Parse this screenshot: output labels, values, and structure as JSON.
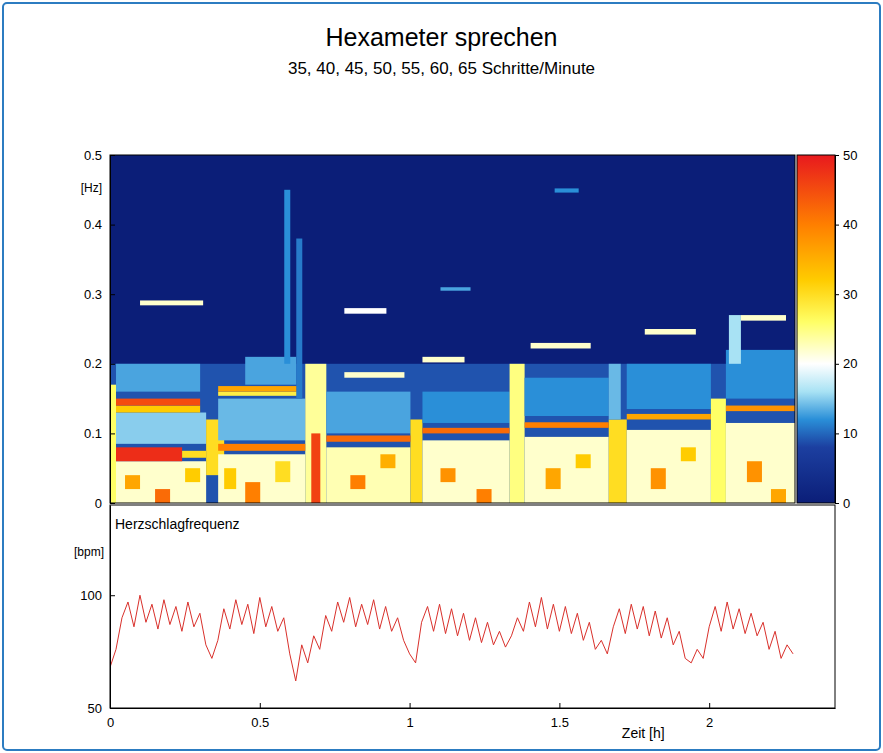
{
  "chart_data": [
    {
      "type": "heatmap",
      "title": "Hexameter sprechen",
      "subtitle": "35, 40, 45, 50, 55, 60, 65 Schritte/Minute",
      "ylabel": "[Hz]",
      "xlim": [
        0,
        2.28
      ],
      "ylim": [
        0,
        0.5
      ],
      "yticks": [
        0,
        0.1,
        0.2,
        0.3,
        0.4,
        0.5
      ],
      "tick_labels": "y",
      "colorbar": {
        "range": [
          0,
          50
        ],
        "ticks": [
          0,
          10,
          20,
          30,
          40,
          50
        ]
      },
      "cells": [
        [
          0,
          2.28,
          0,
          0.2,
          9
        ],
        [
          0,
          0.02,
          0,
          0.17,
          26
        ],
        [
          0.02,
          0.32,
          0,
          0.06,
          22
        ],
        [
          0.02,
          0.32,
          0.085,
          0.13,
          15
        ],
        [
          0.05,
          0.1,
          0.02,
          0.04,
          36
        ],
        [
          0.15,
          0.2,
          0,
          0.02,
          42
        ],
        [
          0.25,
          0.3,
          0.03,
          0.05,
          32
        ],
        [
          0.02,
          0.3,
          0.16,
          0.2,
          13
        ],
        [
          0.32,
          0.38,
          0.04,
          0.12,
          30
        ],
        [
          0.36,
          0.65,
          0,
          0.07,
          22
        ],
        [
          0.36,
          0.65,
          0.09,
          0.15,
          14
        ],
        [
          0.38,
          0.42,
          0.02,
          0.05,
          32
        ],
        [
          0.45,
          0.5,
          0,
          0.03,
          40
        ],
        [
          0.55,
          0.6,
          0.03,
          0.06,
          30
        ],
        [
          0.45,
          0.62,
          0.17,
          0.21,
          13
        ],
        [
          0.58,
          0.6,
          0.2,
          0.45,
          12
        ],
        [
          0.62,
          0.64,
          0.15,
          0.38,
          11
        ],
        [
          0.65,
          0.72,
          0,
          0.2,
          24
        ],
        [
          0.67,
          0.7,
          0,
          0.1,
          46
        ],
        [
          0.72,
          1,
          0,
          0.08,
          23
        ],
        [
          0.72,
          1,
          0.1,
          0.16,
          13
        ],
        [
          0.8,
          0.85,
          0.02,
          0.04,
          40
        ],
        [
          0.9,
          0.95,
          0.05,
          0.07,
          35
        ],
        [
          1,
          1.04,
          0,
          0.12,
          30
        ],
        [
          1.04,
          1.33,
          0,
          0.09,
          22
        ],
        [
          1.04,
          1.33,
          0.115,
          0.16,
          12
        ],
        [
          1.1,
          1.15,
          0.03,
          0.05,
          38
        ],
        [
          1.22,
          1.27,
          0,
          0.02,
          40
        ],
        [
          1.33,
          1.38,
          0,
          0.2,
          25
        ],
        [
          1.38,
          1.66,
          0,
          0.095,
          22
        ],
        [
          1.38,
          1.66,
          0.125,
          0.18,
          12
        ],
        [
          1.45,
          1.5,
          0.02,
          0.05,
          36
        ],
        [
          1.55,
          1.6,
          0.05,
          0.07,
          32
        ],
        [
          1.66,
          1.72,
          0,
          0.12,
          30
        ],
        [
          1.66,
          1.7,
          0.12,
          0.2,
          14
        ],
        [
          1.72,
          2,
          0,
          0.105,
          22
        ],
        [
          1.72,
          2,
          0.135,
          0.2,
          12
        ],
        [
          1.8,
          1.85,
          0.02,
          0.05,
          38
        ],
        [
          1.9,
          1.95,
          0.06,
          0.08,
          32
        ],
        [
          2,
          2.05,
          0,
          0.15,
          26
        ],
        [
          2.05,
          2.28,
          0,
          0.115,
          22
        ],
        [
          2.05,
          2.28,
          0.15,
          0.22,
          12
        ],
        [
          2.12,
          2.17,
          0.03,
          0.06,
          38
        ],
        [
          2.2,
          2.25,
          0,
          0.02,
          36
        ],
        [
          2.06,
          2.1,
          0.2,
          0.27,
          16
        ],
        [
          0.02,
          0.24,
          0.06,
          0.08,
          48
        ],
        [
          0.24,
          0.32,
          0.065,
          0.075,
          30
        ],
        [
          0.02,
          0.3,
          0.13,
          0.14,
          32
        ],
        [
          0.02,
          0.3,
          0.14,
          0.15,
          45
        ],
        [
          0.1,
          0.31,
          0.284,
          0.291,
          22
        ],
        [
          0.36,
          0.65,
          0.075,
          0.085,
          40
        ],
        [
          0.36,
          0.62,
          0.154,
          0.16,
          28
        ],
        [
          0.36,
          0.62,
          0.16,
          0.168,
          36
        ],
        [
          0.72,
          1,
          0.088,
          0.097,
          42
        ],
        [
          0.78,
          0.98,
          0.18,
          0.188,
          22
        ],
        [
          0.78,
          0.92,
          0.272,
          0.28,
          20
        ],
        [
          1.04,
          1.33,
          0.1,
          0.108,
          42
        ],
        [
          1.04,
          1.18,
          0.202,
          0.21,
          22
        ],
        [
          1.1,
          1.2,
          0.305,
          0.31,
          13
        ],
        [
          1.38,
          1.66,
          0.108,
          0.116,
          40
        ],
        [
          1.4,
          1.6,
          0.222,
          0.23,
          22
        ],
        [
          1.48,
          1.56,
          0.446,
          0.452,
          12
        ],
        [
          1.72,
          2,
          0.12,
          0.128,
          36
        ],
        [
          1.78,
          1.95,
          0.242,
          0.25,
          22
        ],
        [
          2.05,
          2.28,
          0.132,
          0.14,
          38
        ],
        [
          2.1,
          2.25,
          0.262,
          0.27,
          22
        ]
      ]
    },
    {
      "type": "line",
      "title": "Herzschlagfrequenz",
      "ylabel": "[bpm]",
      "xlabel": "Zeit [h]",
      "color": "#d9302b",
      "xlim": [
        0,
        2.42
      ],
      "ylim": [
        50,
        140
      ],
      "xticks": [
        0,
        0.5,
        1,
        1.5,
        2
      ],
      "yticks": [
        50,
        100
      ],
      "x": [
        0,
        0.02,
        0.04,
        0.06,
        0.08,
        0.1,
        0.12,
        0.14,
        0.16,
        0.18,
        0.2,
        0.22,
        0.24,
        0.26,
        0.28,
        0.3,
        0.32,
        0.34,
        0.36,
        0.38,
        0.4,
        0.42,
        0.44,
        0.46,
        0.48,
        0.5,
        0.52,
        0.54,
        0.56,
        0.58,
        0.6,
        0.62,
        0.64,
        0.66,
        0.68,
        0.7,
        0.72,
        0.74,
        0.76,
        0.78,
        0.8,
        0.82,
        0.84,
        0.86,
        0.88,
        0.9,
        0.92,
        0.94,
        0.96,
        0.98,
        1,
        1.02,
        1.04,
        1.06,
        1.08,
        1.1,
        1.12,
        1.14,
        1.16,
        1.18,
        1.2,
        1.22,
        1.24,
        1.26,
        1.28,
        1.3,
        1.32,
        1.34,
        1.36,
        1.38,
        1.4,
        1.42,
        1.44,
        1.46,
        1.48,
        1.5,
        1.52,
        1.54,
        1.56,
        1.58,
        1.6,
        1.62,
        1.64,
        1.66,
        1.68,
        1.7,
        1.72,
        1.74,
        1.76,
        1.78,
        1.8,
        1.82,
        1.84,
        1.86,
        1.88,
        1.9,
        1.92,
        1.94,
        1.96,
        1.98,
        2,
        2.02,
        2.04,
        2.06,
        2.08,
        2.1,
        2.12,
        2.14,
        2.16,
        2.18,
        2.2,
        2.22,
        2.24,
        2.26,
        2.28
      ],
      "values": [
        68,
        76,
        90,
        97,
        86,
        100,
        88,
        96,
        85,
        98,
        87,
        95,
        84,
        97,
        86,
        92,
        78,
        72,
        80,
        94,
        85,
        98,
        87,
        96,
        83,
        99,
        86,
        95,
        84,
        90,
        74,
        62,
        78,
        70,
        82,
        76,
        91,
        84,
        97,
        88,
        99,
        86,
        96,
        87,
        98,
        85,
        95,
        84,
        90,
        80,
        74,
        70,
        88,
        95,
        84,
        96,
        83,
        94,
        82,
        92,
        80,
        90,
        79,
        88,
        78,
        84,
        77,
        82,
        90,
        84,
        97,
        86,
        99,
        85,
        96,
        84,
        95,
        83,
        92,
        80,
        88,
        76,
        80,
        74,
        86,
        94,
        83,
        96,
        85,
        95,
        82,
        93,
        81,
        90,
        78,
        84,
        72,
        70,
        76,
        72,
        86,
        95,
        84,
        97,
        85,
        94,
        83,
        92,
        82,
        88,
        76,
        84,
        72,
        78,
        74
      ]
    }
  ]
}
